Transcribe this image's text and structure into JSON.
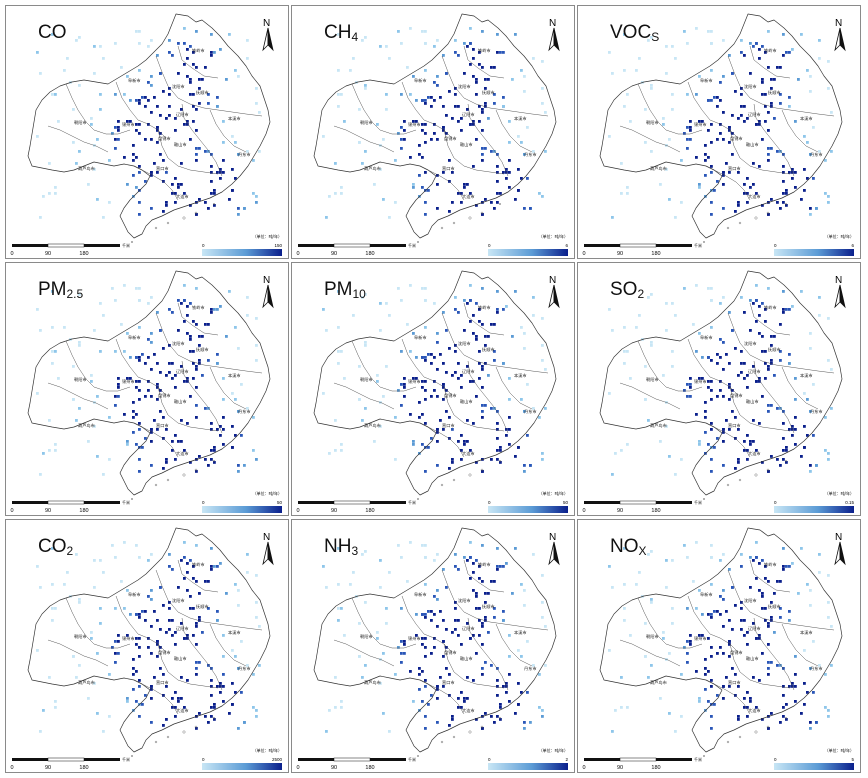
{
  "panels": [
    {
      "base": "CO",
      "sub": "",
      "max": "150",
      "min": "0"
    },
    {
      "base": "CH",
      "sub": "4",
      "max": "6",
      "min": "0"
    },
    {
      "base": "VOC",
      "sub": "S",
      "max": "6",
      "min": "0"
    },
    {
      "base": "PM",
      "sub": "2.5",
      "max": "50",
      "min": "0"
    },
    {
      "base": "PM",
      "sub": "10",
      "max": "50",
      "min": "0"
    },
    {
      "base": "SO",
      "sub": "2",
      "max": "0.15",
      "min": "0"
    },
    {
      "base": "CO",
      "sub": "2",
      "max": "2500",
      "min": "0"
    },
    {
      "base": "NH",
      "sub": "3",
      "max": "2",
      "min": "0"
    },
    {
      "base": "NO",
      "sub": "X",
      "max": "5",
      "min": "0"
    }
  ],
  "north_label": "N",
  "scale": {
    "ticks": [
      "0",
      "90",
      "180"
    ],
    "unit": "千米"
  },
  "legend_unit": "（单位：吨/年）",
  "cities": [
    "铁岭市",
    "阜新市",
    "沈阳市",
    "抚顺市",
    "朝阳市",
    "锦州市",
    "盘锦市",
    "本溪市",
    "鞍山市",
    "丹东市",
    "葫芦岛市",
    "营口市",
    "辽阳市",
    "大连市"
  ],
  "colors": {
    "low": "#c8e6f5",
    "mid": "#5b9bd5",
    "high": "#0a1f8c"
  }
}
